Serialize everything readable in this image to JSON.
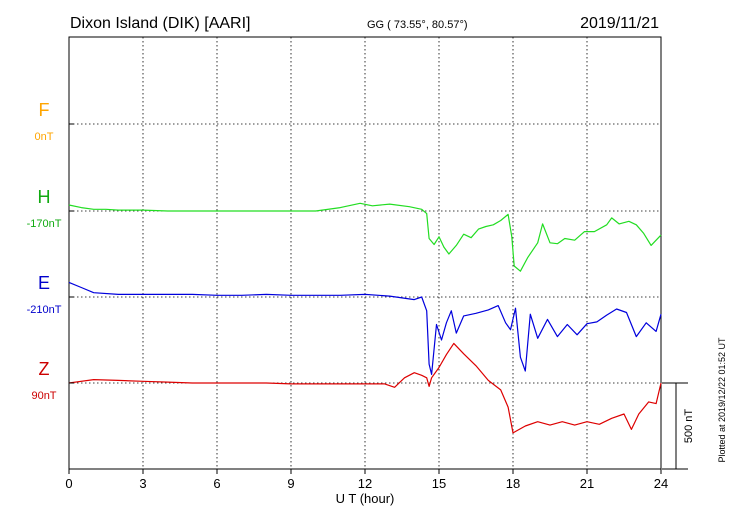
{
  "header": {
    "station": "Dixon Island (DIK)  [AARI]",
    "coords": "GG ( 73.55°,  80.57°)",
    "date": "2019/11/21"
  },
  "plotted_note": "Plotted at 2019/12/22 01:52 UT",
  "scale_label": "500 nT",
  "chart_data": {
    "type": "line",
    "title": "Dixon Island (DIK)  [AARI]",
    "xlabel": "U T (hour)",
    "ylabel": "",
    "xlim": [
      0,
      24
    ],
    "x_ticks": [
      "0",
      "3",
      "6",
      "9",
      "12",
      "15",
      "18",
      "21",
      "24"
    ],
    "grid": true,
    "scale_bar_nT": 500,
    "series": [
      {
        "name": "F",
        "offset_label": "0nT",
        "color": "#ffa500",
        "label_color": "#ffa500",
        "points": []
      },
      {
        "name": "H",
        "offset_label": "-170nT",
        "color": "#22dd22",
        "label_color": "#11aa11",
        "points": [
          [
            0,
            35
          ],
          [
            0.5,
            20
          ],
          [
            1,
            10
          ],
          [
            1.5,
            10
          ],
          [
            2,
            5
          ],
          [
            3,
            5
          ],
          [
            4,
            0
          ],
          [
            5,
            0
          ],
          [
            6,
            0
          ],
          [
            7,
            0
          ],
          [
            8,
            0
          ],
          [
            9,
            0
          ],
          [
            10,
            0
          ],
          [
            11,
            20
          ],
          [
            11.8,
            45
          ],
          [
            12.3,
            30
          ],
          [
            13,
            40
          ],
          [
            13.8,
            25
          ],
          [
            14.3,
            10
          ],
          [
            14.5,
            -15
          ],
          [
            14.6,
            -160
          ],
          [
            14.8,
            -195
          ],
          [
            15,
            -150
          ],
          [
            15.2,
            -210
          ],
          [
            15.4,
            -250
          ],
          [
            15.7,
            -200
          ],
          [
            16,
            -135
          ],
          [
            16.3,
            -155
          ],
          [
            16.6,
            -105
          ],
          [
            16.9,
            -90
          ],
          [
            17.2,
            -80
          ],
          [
            17.5,
            -55
          ],
          [
            17.8,
            -20
          ],
          [
            17.95,
            -150
          ],
          [
            18.05,
            -320
          ],
          [
            18.3,
            -350
          ],
          [
            18.6,
            -270
          ],
          [
            19,
            -185
          ],
          [
            19.2,
            -75
          ],
          [
            19.5,
            -185
          ],
          [
            19.8,
            -190
          ],
          [
            20.1,
            -160
          ],
          [
            20.5,
            -170
          ],
          [
            20.9,
            -120
          ],
          [
            21.3,
            -120
          ],
          [
            21.8,
            -80
          ],
          [
            22,
            -40
          ],
          [
            22.3,
            -75
          ],
          [
            22.7,
            -60
          ],
          [
            23,
            -80
          ],
          [
            23.3,
            -130
          ],
          [
            23.6,
            -200
          ],
          [
            24,
            -140
          ]
        ]
      },
      {
        "name": "E",
        "offset_label": "-210nT",
        "color": "#0000dd",
        "label_color": "#0000cc",
        "points": [
          [
            0,
            85
          ],
          [
            0.5,
            55
          ],
          [
            1,
            25
          ],
          [
            2,
            15
          ],
          [
            3,
            15
          ],
          [
            4,
            15
          ],
          [
            5,
            15
          ],
          [
            6,
            10
          ],
          [
            7,
            10
          ],
          [
            8,
            15
          ],
          [
            9,
            10
          ],
          [
            10,
            10
          ],
          [
            11,
            10
          ],
          [
            12,
            15
          ],
          [
            13,
            5
          ],
          [
            13.5,
            -5
          ],
          [
            14,
            -15
          ],
          [
            14.3,
            0
          ],
          [
            14.5,
            -80
          ],
          [
            14.6,
            -390
          ],
          [
            14.7,
            -450
          ],
          [
            14.9,
            -160
          ],
          [
            15.1,
            -250
          ],
          [
            15.3,
            -150
          ],
          [
            15.5,
            -80
          ],
          [
            15.7,
            -210
          ],
          [
            16,
            -110
          ],
          [
            16.5,
            -95
          ],
          [
            17,
            -75
          ],
          [
            17.4,
            -50
          ],
          [
            17.7,
            -150
          ],
          [
            17.9,
            -190
          ],
          [
            18.1,
            -65
          ],
          [
            18.3,
            -350
          ],
          [
            18.5,
            -430
          ],
          [
            18.7,
            -100
          ],
          [
            19,
            -240
          ],
          [
            19.4,
            -130
          ],
          [
            19.8,
            -230
          ],
          [
            20.2,
            -160
          ],
          [
            20.6,
            -220
          ],
          [
            21,
            -155
          ],
          [
            21.4,
            -145
          ],
          [
            21.8,
            -105
          ],
          [
            22.2,
            -70
          ],
          [
            22.6,
            -90
          ],
          [
            23,
            -230
          ],
          [
            23.4,
            -150
          ],
          [
            23.8,
            -200
          ],
          [
            24,
            -100
          ]
        ]
      },
      {
        "name": "Z",
        "offset_label": "90nT",
        "color": "#dd0000",
        "label_color": "#cc0000",
        "points": [
          [
            0,
            0
          ],
          [
            1,
            20
          ],
          [
            2,
            15
          ],
          [
            3,
            10
          ],
          [
            4,
            5
          ],
          [
            5,
            0
          ],
          [
            6,
            0
          ],
          [
            7,
            0
          ],
          [
            8,
            0
          ],
          [
            9,
            -5
          ],
          [
            10,
            -5
          ],
          [
            11,
            -5
          ],
          [
            12,
            -5
          ],
          [
            12.8,
            -5
          ],
          [
            13.2,
            -25
          ],
          [
            13.6,
            30
          ],
          [
            14,
            60
          ],
          [
            14.3,
            45
          ],
          [
            14.5,
            30
          ],
          [
            14.6,
            -20
          ],
          [
            14.7,
            30
          ],
          [
            15,
            90
          ],
          [
            15.3,
            165
          ],
          [
            15.6,
            230
          ],
          [
            16,
            170
          ],
          [
            16.5,
            100
          ],
          [
            17,
            15
          ],
          [
            17.5,
            -40
          ],
          [
            17.8,
            -140
          ],
          [
            18,
            -290
          ],
          [
            18.5,
            -250
          ],
          [
            19,
            -225
          ],
          [
            19.5,
            -245
          ],
          [
            20,
            -225
          ],
          [
            20.5,
            -245
          ],
          [
            21,
            -225
          ],
          [
            21.5,
            -240
          ],
          [
            22,
            -205
          ],
          [
            22.5,
            -180
          ],
          [
            22.8,
            -270
          ],
          [
            23.1,
            -180
          ],
          [
            23.5,
            -110
          ],
          [
            23.8,
            -120
          ],
          [
            24,
            0
          ]
        ]
      }
    ]
  }
}
